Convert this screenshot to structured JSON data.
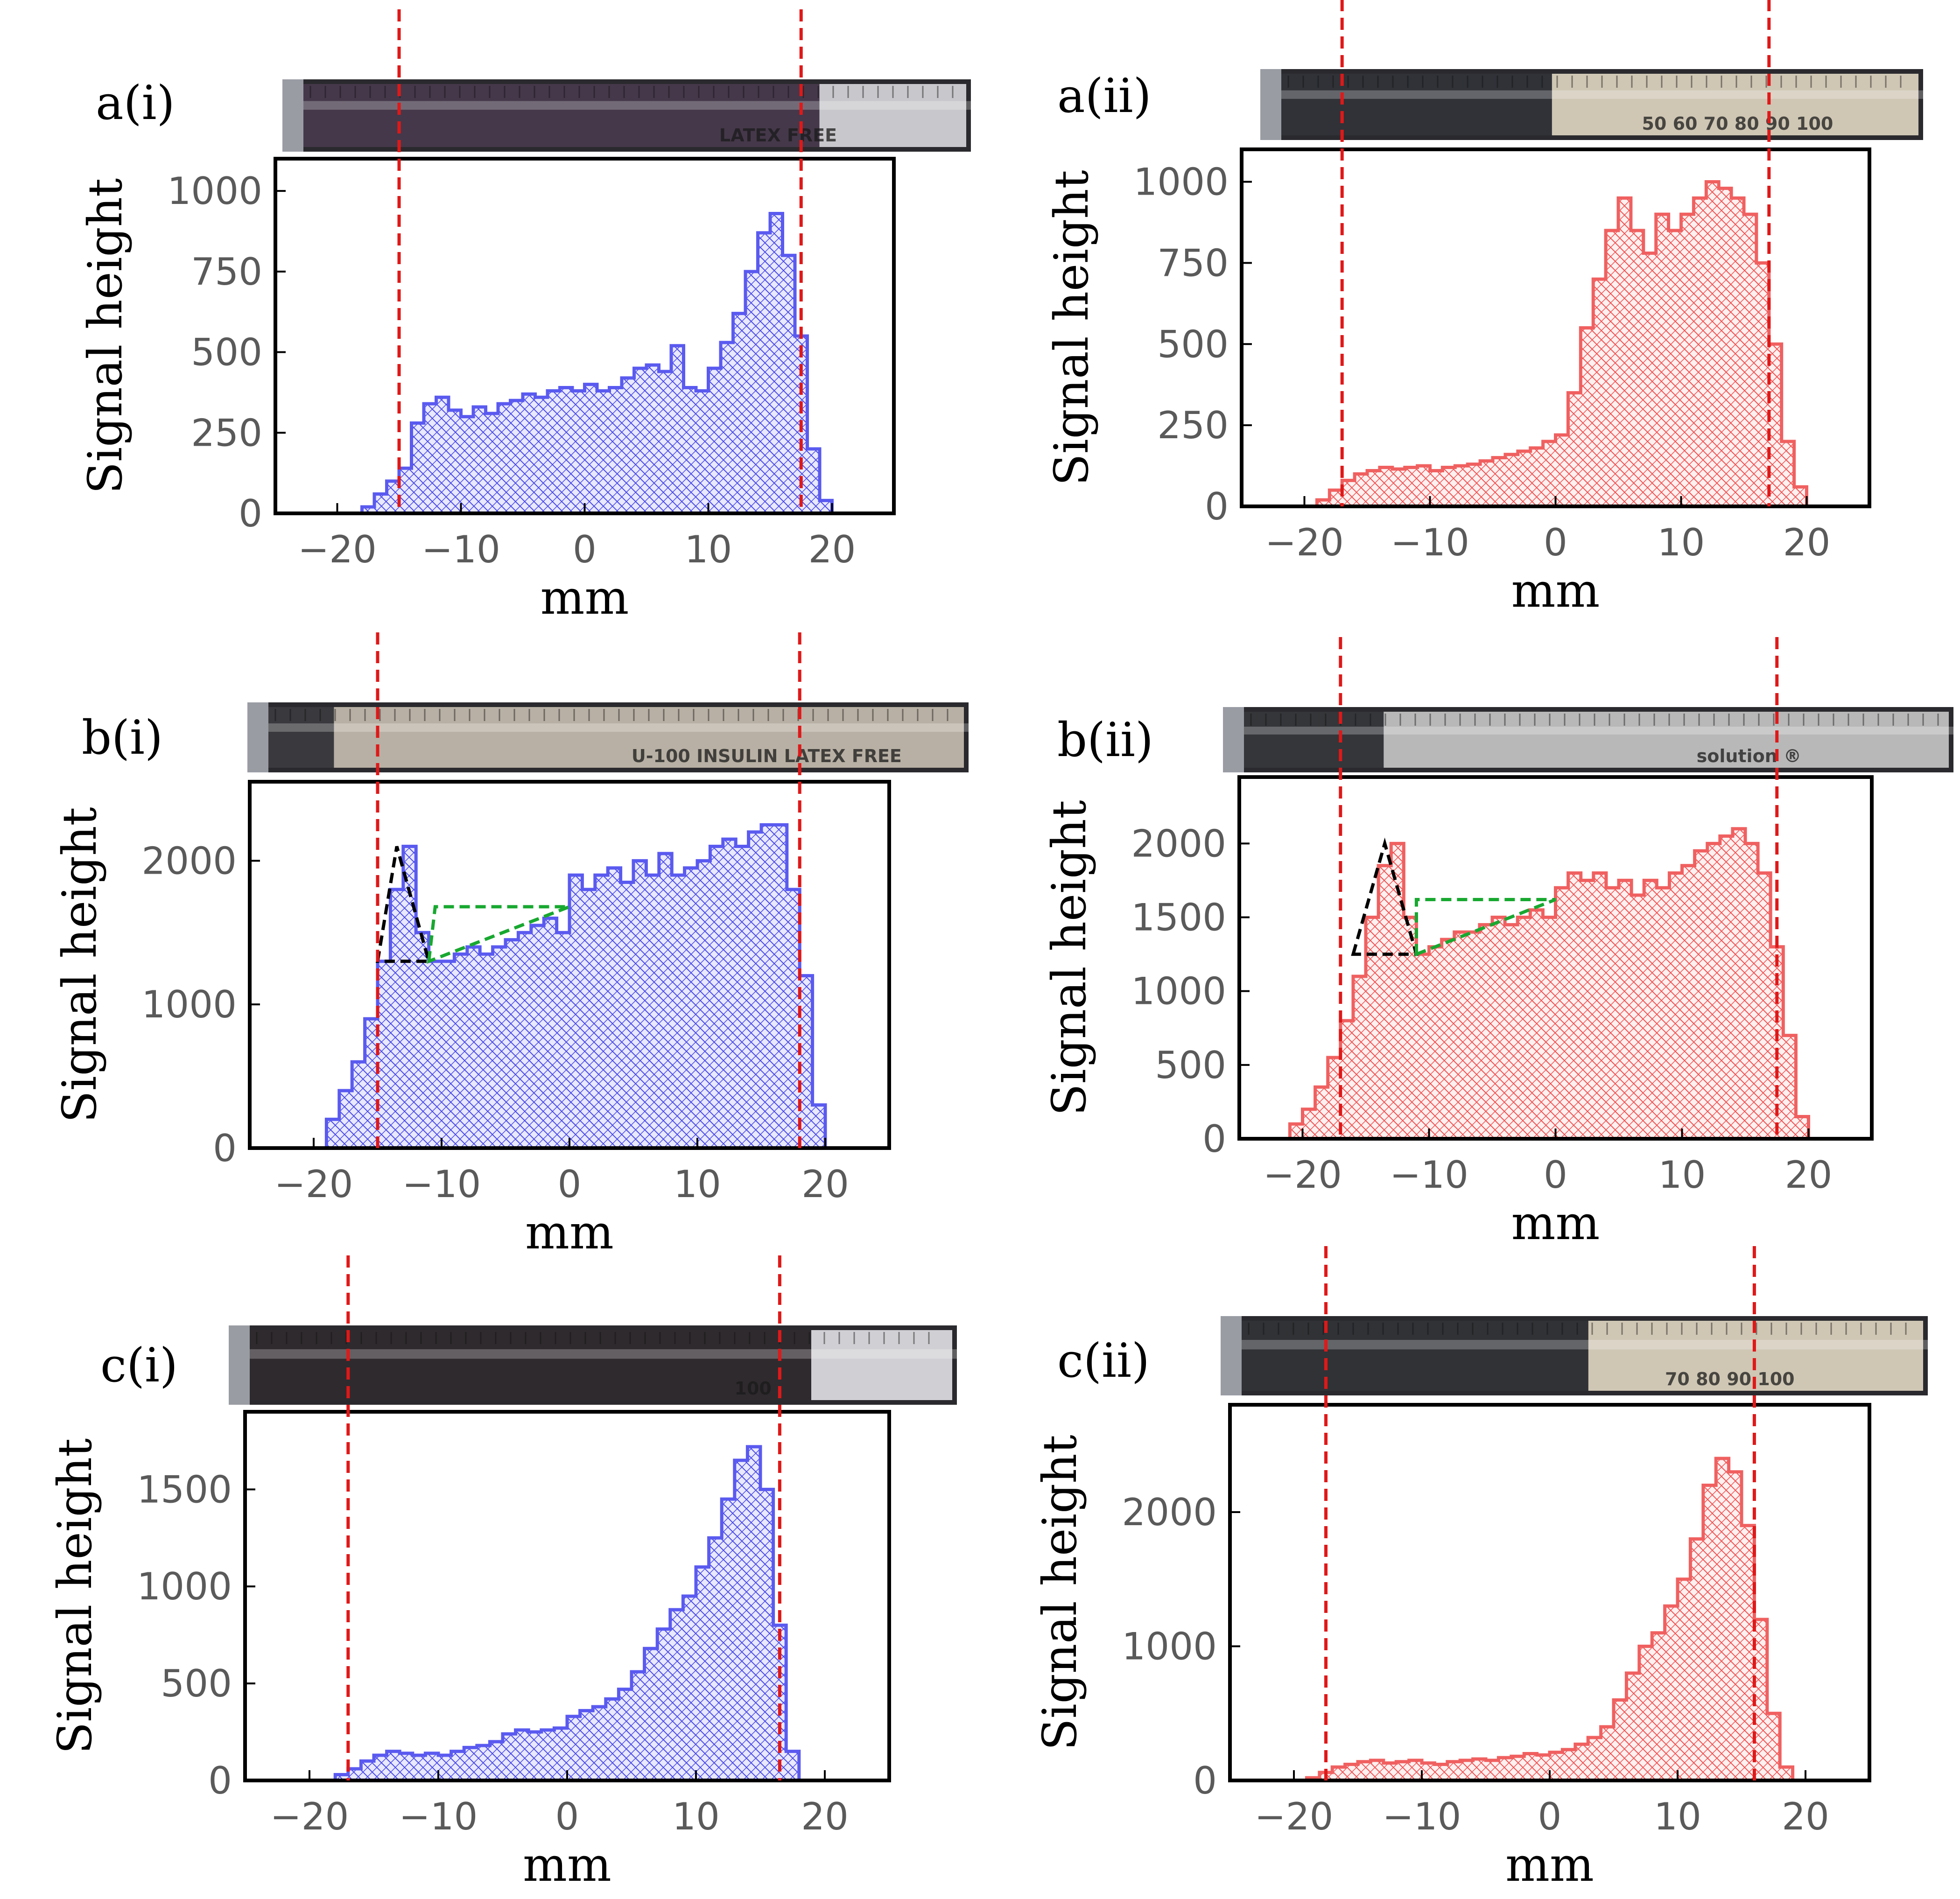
{
  "colors": {
    "blue_line": "#5a5af0",
    "blue_hatch": "#4848e8",
    "blue_fill": "#e8e8ff",
    "red_line": "#f06060",
    "red_hatch": "#f05050",
    "red_fill": "#fff0f0",
    "marker": "#e01818",
    "black_triangle": "#000000",
    "green_triangle": "#18a830"
  },
  "chart_data": [
    {
      "id": "a_i",
      "panel_label": "a(i)",
      "type": "area",
      "style": "step histogram, hatched fill",
      "color": "blue",
      "xlabel": "mm",
      "ylabel": "Signal height",
      "xlim": [
        -25,
        25
      ],
      "ylim": [
        0,
        1100
      ],
      "xticks": [
        -20,
        -10,
        0,
        10,
        20
      ],
      "xtick_labels": [
        "−20",
        "−10",
        "0",
        "10",
        "20"
      ],
      "yticks": [
        0,
        250,
        500,
        750,
        1000
      ],
      "ytick_labels": [
        "0",
        "250",
        "500",
        "750",
        "1000"
      ],
      "markers": [
        -15,
        17.5
      ],
      "syringe": {
        "left": "#45384a",
        "right": "#c8c8cc",
        "boundary": 0.78,
        "text": "LATEX FREE"
      },
      "x": [
        -25,
        -19,
        -18,
        -17,
        -16,
        -15,
        -14,
        -13,
        -12,
        -11,
        -10,
        -9,
        -8,
        -7,
        -6,
        -5,
        -4,
        -3,
        -2,
        -1,
        0,
        1,
        2,
        3,
        4,
        5,
        6,
        7,
        8,
        9,
        10,
        11,
        12,
        13,
        14,
        15,
        16,
        17,
        18,
        19,
        20,
        25
      ],
      "y": [
        0,
        0,
        20,
        60,
        100,
        140,
        280,
        340,
        360,
        320,
        300,
        330,
        310,
        340,
        350,
        370,
        360,
        380,
        390,
        380,
        400,
        380,
        390,
        420,
        450,
        460,
        440,
        520,
        390,
        380,
        450,
        530,
        620,
        750,
        870,
        930,
        800,
        550,
        200,
        40,
        0,
        0
      ]
    },
    {
      "id": "a_ii",
      "panel_label": "a(ii)",
      "type": "area",
      "style": "step histogram, hatched fill",
      "color": "red",
      "xlabel": "mm",
      "ylabel": "Signal height",
      "xlim": [
        -25,
        25
      ],
      "ylim": [
        0,
        1100
      ],
      "xticks": [
        -20,
        -10,
        0,
        10,
        20
      ],
      "xtick_labels": [
        "−20",
        "−10",
        "0",
        "10",
        "20"
      ],
      "yticks": [
        0,
        250,
        500,
        750,
        1000
      ],
      "ytick_labels": [
        "0",
        "250",
        "500",
        "750",
        "1000"
      ],
      "markers": [
        -17,
        17
      ],
      "syringe": {
        "left": "#303238",
        "right": "#cfc6b4",
        "boundary": 0.44,
        "text": "50  60  70  80  90  100"
      },
      "x": [
        -25,
        -20,
        -19,
        -18,
        -17,
        -16,
        -15,
        -14,
        -13,
        -12,
        -11,
        -10,
        -9,
        -8,
        -7,
        -6,
        -5,
        -4,
        -3,
        -2,
        -1,
        0,
        1,
        2,
        3,
        4,
        5,
        6,
        7,
        8,
        9,
        10,
        11,
        12,
        13,
        14,
        15,
        16,
        17,
        18,
        19,
        20,
        25
      ],
      "y": [
        0,
        0,
        20,
        50,
        80,
        100,
        110,
        120,
        115,
        120,
        125,
        110,
        120,
        125,
        130,
        140,
        150,
        160,
        170,
        180,
        200,
        220,
        350,
        550,
        700,
        850,
        950,
        850,
        780,
        900,
        850,
        900,
        950,
        1000,
        980,
        950,
        900,
        750,
        500,
        200,
        60,
        0,
        0
      ]
    },
    {
      "id": "b_i",
      "panel_label": "b(i)",
      "type": "area",
      "style": "step histogram, hatched fill",
      "color": "blue",
      "xlabel": "mm",
      "ylabel": "Signal height",
      "xlim": [
        -25,
        25
      ],
      "ylim": [
        0,
        2550
      ],
      "xticks": [
        -20,
        -10,
        0,
        10,
        20
      ],
      "xtick_labels": [
        "−20",
        "−10",
        "0",
        "10",
        "20"
      ],
      "yticks": [
        0,
        1000,
        2000
      ],
      "ytick_labels": [
        "0",
        "1000",
        "2000"
      ],
      "markers": [
        -15,
        18
      ],
      "syringe": {
        "left": "#3a3a3e",
        "right": "#b8b0a4",
        "boundary": 0.12,
        "text": "U-100   INSULIN   LATEX FREE"
      },
      "triangles": [
        {
          "color": "black",
          "points": [
            [
              -15,
              1300
            ],
            [
              -13.5,
              2100
            ],
            [
              -11,
              1300
            ]
          ]
        },
        {
          "color": "green",
          "points": [
            [
              -11,
              1300
            ],
            [
              -10.5,
              1680
            ],
            [
              0,
              1680
            ]
          ]
        }
      ],
      "x": [
        -25,
        -20,
        -19,
        -18,
        -17,
        -16,
        -15,
        -14,
        -13,
        -12,
        -11,
        -10,
        -9,
        -8,
        -7,
        -6,
        -5,
        -4,
        -3,
        -2,
        -1,
        0,
        1,
        2,
        3,
        4,
        5,
        6,
        7,
        8,
        9,
        10,
        11,
        12,
        13,
        14,
        15,
        16,
        17,
        18,
        19,
        20,
        25
      ],
      "y": [
        0,
        0,
        200,
        400,
        600,
        900,
        1300,
        1800,
        2100,
        1500,
        1300,
        1300,
        1350,
        1400,
        1350,
        1400,
        1450,
        1500,
        1550,
        1600,
        1500,
        1900,
        1800,
        1900,
        1950,
        1850,
        2000,
        1900,
        2050,
        1900,
        1950,
        2000,
        2100,
        2150,
        2100,
        2200,
        2250,
        2250,
        1800,
        1200,
        300,
        0,
        0
      ]
    },
    {
      "id": "b_ii",
      "panel_label": "b(ii)",
      "type": "area",
      "style": "step histogram, hatched fill",
      "color": "red",
      "xlabel": "mm",
      "ylabel": "Signal height",
      "xlim": [
        -25,
        25
      ],
      "ylim": [
        0,
        2450
      ],
      "xticks": [
        -20,
        -10,
        0,
        10,
        20
      ],
      "xtick_labels": [
        "−20",
        "−10",
        "0",
        "10",
        "20"
      ],
      "yticks": [
        0,
        500,
        1000,
        1500,
        2000
      ],
      "ytick_labels": [
        "0",
        "500",
        "1000",
        "1500",
        "2000"
      ],
      "markers": [
        -17,
        17.5
      ],
      "syringe": {
        "left": "#34363a",
        "right": "#b8b8b8",
        "boundary": 0.22,
        "text": "solution ®"
      },
      "triangles": [
        {
          "color": "black",
          "points": [
            [
              -16,
              1250
            ],
            [
              -13.5,
              2000
            ],
            [
              -11,
              1250
            ]
          ]
        },
        {
          "color": "green",
          "points": [
            [
              -11,
              1250
            ],
            [
              -11,
              1620
            ],
            [
              0,
              1620
            ]
          ]
        }
      ],
      "x": [
        -25,
        -22,
        -21,
        -20,
        -19,
        -18,
        -17,
        -16,
        -15,
        -14,
        -13,
        -12,
        -11,
        -10,
        -9,
        -8,
        -7,
        -6,
        -5,
        -4,
        -3,
        -2,
        -1,
        0,
        1,
        2,
        3,
        4,
        5,
        6,
        7,
        8,
        9,
        10,
        11,
        12,
        13,
        14,
        15,
        16,
        17,
        18,
        19,
        20,
        25
      ],
      "y": [
        0,
        0,
        100,
        200,
        350,
        550,
        800,
        1100,
        1500,
        1850,
        2000,
        1500,
        1250,
        1300,
        1350,
        1400,
        1400,
        1450,
        1500,
        1450,
        1500,
        1550,
        1500,
        1700,
        1800,
        1750,
        1800,
        1700,
        1750,
        1650,
        1750,
        1700,
        1800,
        1850,
        1950,
        2000,
        2050,
        2100,
        2000,
        1800,
        1300,
        700,
        150,
        0,
        0
      ]
    },
    {
      "id": "c_i",
      "panel_label": "c(i)",
      "type": "area",
      "style": "step histogram, hatched fill",
      "color": "blue",
      "xlabel": "mm",
      "ylabel": "Signal height",
      "xlim": [
        -25,
        25
      ],
      "ylim": [
        0,
        1900
      ],
      "xticks": [
        -20,
        -10,
        0,
        10,
        20
      ],
      "xtick_labels": [
        "−20",
        "−10",
        "0",
        "10",
        "20"
      ],
      "yticks": [
        0,
        500,
        1000,
        1500
      ],
      "ytick_labels": [
        "0",
        "500",
        "1000",
        "1500"
      ],
      "markers": [
        -17,
        16.5
      ],
      "syringe": {
        "left": "#2f2a2e",
        "right": "#d0d0d4",
        "boundary": 0.8,
        "text": "100"
      },
      "x": [
        -25,
        -19,
        -18,
        -17,
        -16,
        -15,
        -14,
        -13,
        -12,
        -11,
        -10,
        -9,
        -8,
        -7,
        -6,
        -5,
        -4,
        -3,
        -2,
        -1,
        0,
        1,
        2,
        3,
        4,
        5,
        6,
        7,
        8,
        9,
        10,
        11,
        12,
        13,
        14,
        15,
        16,
        17,
        18,
        25
      ],
      "y": [
        0,
        0,
        30,
        60,
        100,
        130,
        150,
        140,
        130,
        140,
        130,
        150,
        170,
        180,
        200,
        240,
        260,
        250,
        260,
        270,
        330,
        360,
        380,
        420,
        470,
        560,
        680,
        780,
        880,
        950,
        1100,
        1250,
        1450,
        1650,
        1720,
        1500,
        800,
        150,
        0,
        0
      ]
    },
    {
      "id": "c_ii",
      "panel_label": "c(ii)",
      "type": "area",
      "style": "step histogram, hatched fill",
      "color": "red",
      "xlabel": "mm",
      "ylabel": "Signal height",
      "xlim": [
        -25,
        25
      ],
      "ylim": [
        0,
        2800
      ],
      "xticks": [
        -20,
        -10,
        0,
        10,
        20
      ],
      "xtick_labels": [
        "−20",
        "−10",
        "0",
        "10",
        "20"
      ],
      "yticks": [
        0,
        1000,
        2000
      ],
      "ytick_labels": [
        "0",
        "1000",
        "2000"
      ],
      "markers": [
        -17.5,
        16
      ],
      "syringe": {
        "left": "#303236",
        "right": "#cfc6b4",
        "boundary": 0.52,
        "text": "70  80  90  100"
      },
      "x": [
        -25,
        -20,
        -19,
        -18,
        -17,
        -16,
        -15,
        -14,
        -13,
        -12,
        -11,
        -10,
        -9,
        -8,
        -7,
        -6,
        -5,
        -4,
        -3,
        -2,
        -1,
        0,
        1,
        2,
        3,
        4,
        5,
        6,
        7,
        8,
        9,
        10,
        11,
        12,
        13,
        14,
        15,
        16,
        17,
        18,
        19,
        25
      ],
      "y": [
        0,
        0,
        20,
        60,
        100,
        120,
        140,
        150,
        130,
        140,
        150,
        130,
        120,
        140,
        150,
        160,
        150,
        170,
        180,
        200,
        190,
        210,
        230,
        270,
        320,
        400,
        600,
        800,
        1000,
        1100,
        1300,
        1500,
        1800,
        2200,
        2400,
        2300,
        1900,
        1200,
        500,
        100,
        0,
        0
      ]
    }
  ]
}
